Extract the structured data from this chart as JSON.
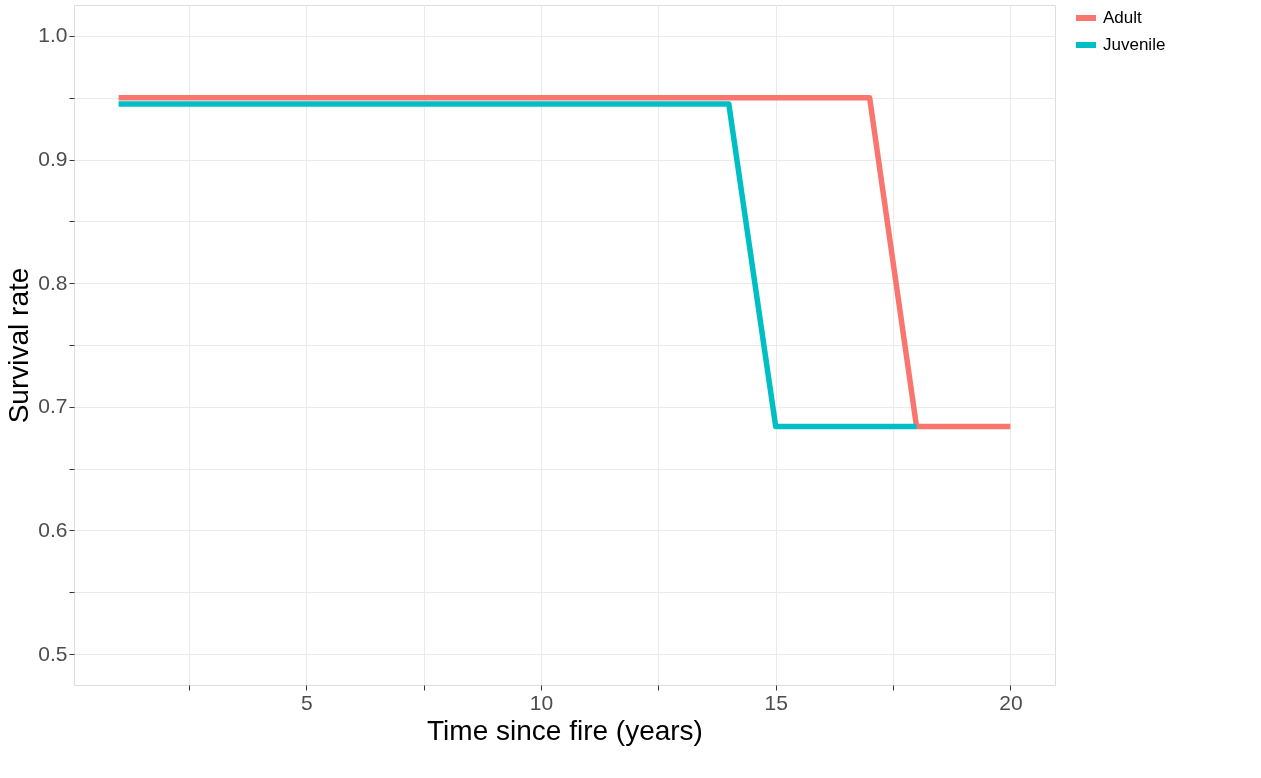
{
  "chart_data": {
    "type": "line",
    "xlabel": "Time since fire (years)",
    "ylabel": "Survival rate",
    "series": [
      {
        "name": "Adult",
        "color": "#f8766d",
        "x": [
          1,
          17,
          18,
          20
        ],
        "values": [
          0.95,
          0.95,
          0.684,
          0.684
        ]
      },
      {
        "name": "Juvenile",
        "color": "#00bfc4",
        "x": [
          1,
          14,
          15,
          18
        ],
        "values": [
          0.945,
          0.945,
          0.684,
          0.684
        ]
      }
    ],
    "xlim": [
      0.05,
      20.95
    ],
    "ylim": [
      0.475,
      1.025
    ],
    "xticks": [
      {
        "value": 2.5,
        "label": null
      },
      5,
      {
        "value": 7.5,
        "label": null
      },
      10,
      {
        "value": 12.5,
        "label": null
      },
      15,
      {
        "value": 17.5,
        "label": null
      },
      20
    ],
    "yticks": [
      {
        "value": 0.5,
        "label": "0.5"
      },
      {
        "value": 0.55,
        "label": null
      },
      {
        "value": 0.6,
        "label": "0.6"
      },
      {
        "value": 0.65,
        "label": null
      },
      {
        "value": 0.7,
        "label": "0.7"
      },
      {
        "value": 0.75,
        "label": null
      },
      {
        "value": 0.8,
        "label": "0.8"
      },
      {
        "value": 0.85,
        "label": null
      },
      {
        "value": 0.9,
        "label": "0.9"
      },
      {
        "value": 0.95,
        "label": null
      },
      {
        "value": 1,
        "label": "1.0"
      }
    ],
    "grid": true,
    "legend": "right",
    "line_style": "solid",
    "marker": "none"
  }
}
